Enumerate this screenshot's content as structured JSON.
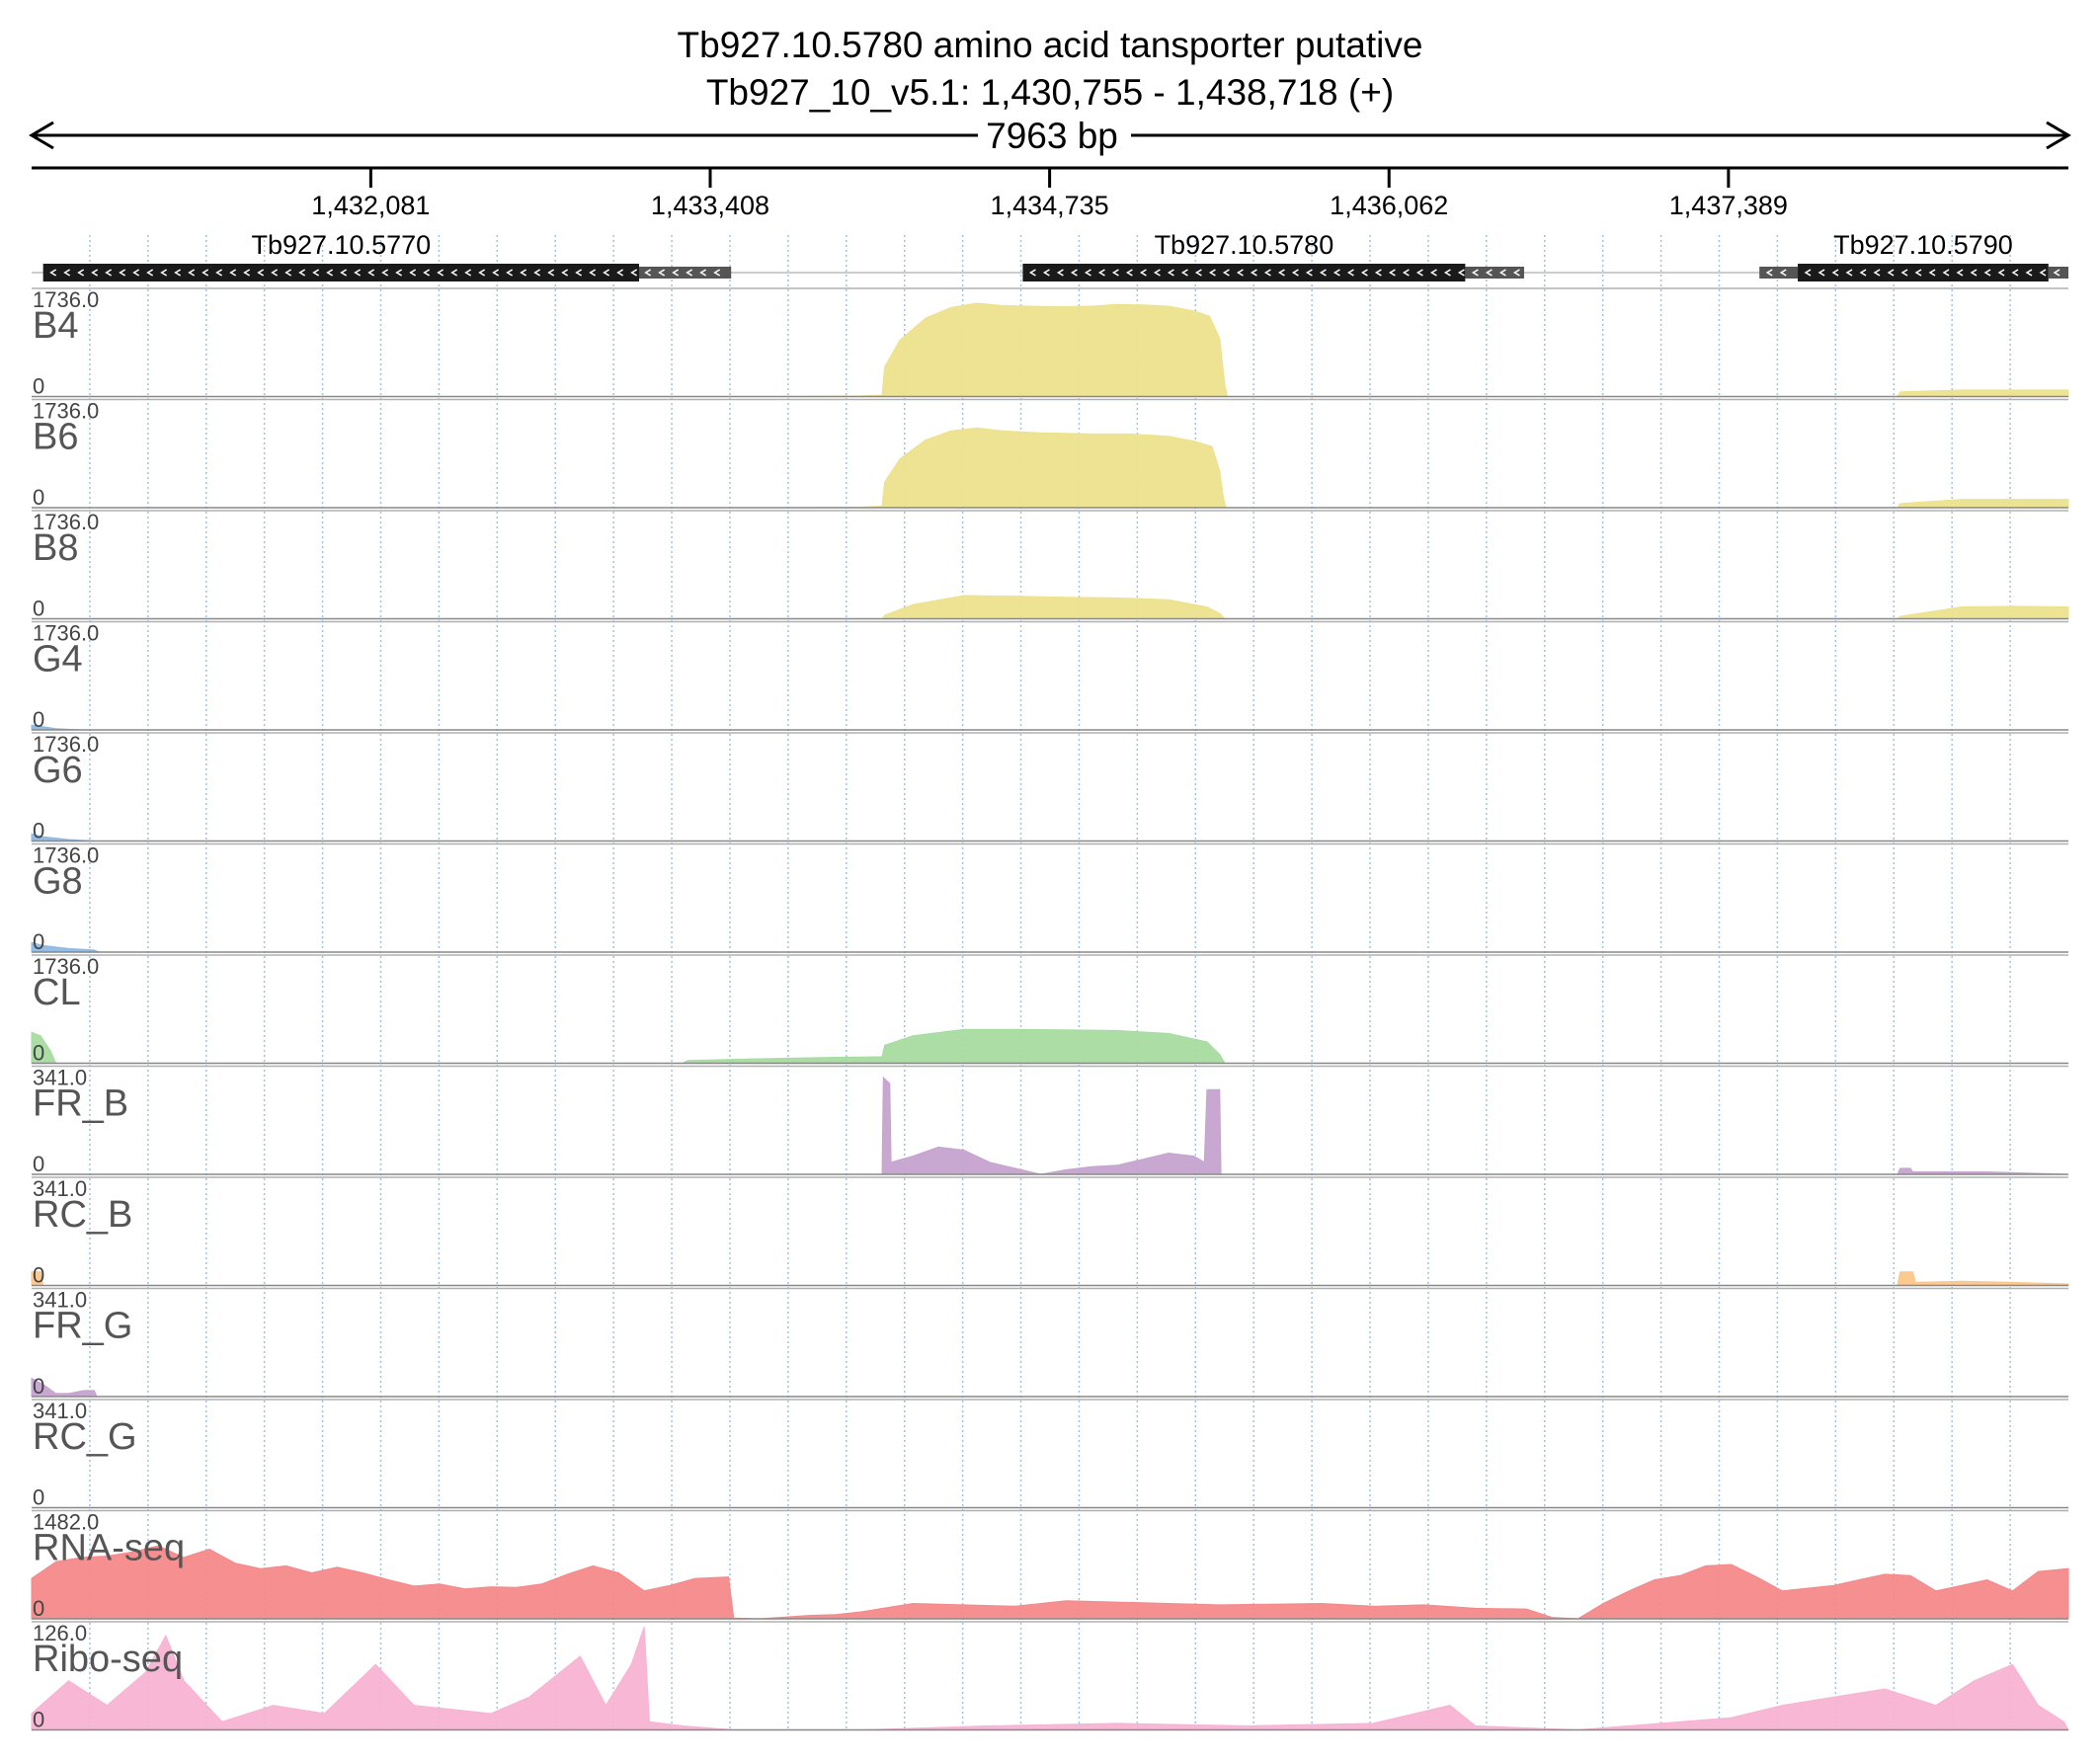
{
  "chart_data": {
    "type": "area",
    "title": "Tb927.10.5780  amino acid tansporter  putative",
    "subtitle": "Tb927_10_v5.1: 1,430,755 - 1,438,718 (+)",
    "span_label": "7963 bp",
    "xlim": [
      1430755,
      1438718
    ],
    "grid": true,
    "ticks": [
      {
        "pos": 1432081,
        "label": "1,432,081"
      },
      {
        "pos": 1433408,
        "label": "1,433,408"
      },
      {
        "pos": 1434735,
        "label": "1,434,735"
      },
      {
        "pos": 1436062,
        "label": "1,436,062"
      },
      {
        "pos": 1437389,
        "label": "1,437,389"
      }
    ],
    "genes": [
      {
        "name": "Tb927.10.5770",
        "strand": "-",
        "start": 1430800,
        "cds_end": 1433130,
        "end": 1433490
      },
      {
        "name": "Tb927.10.5780",
        "strand": "-",
        "start": 1434630,
        "cds_end": 1436360,
        "end": 1436590
      },
      {
        "name": "Tb927.10.5790",
        "strand": "-",
        "start": 1437660,
        "cds_end": 1438640,
        "end": 1438718,
        "utr_start": 1437510
      }
    ],
    "series": [
      {
        "name": "B4",
        "max_label": "1736.0",
        "zero_label": "0",
        "ymax": 1736,
        "color": "#ede28c",
        "points": [
          [
            1430755,
            0
          ],
          [
            1430850,
            0
          ],
          [
            1433700,
            0
          ],
          [
            1434000,
            10
          ],
          [
            1434080,
            25
          ],
          [
            1434090,
            500
          ],
          [
            1434150,
            950
          ],
          [
            1434250,
            1320
          ],
          [
            1434350,
            1500
          ],
          [
            1434450,
            1570
          ],
          [
            1434550,
            1530
          ],
          [
            1434650,
            1520
          ],
          [
            1434750,
            1510
          ],
          [
            1434900,
            1520
          ],
          [
            1435000,
            1550
          ],
          [
            1435100,
            1540
          ],
          [
            1435200,
            1520
          ],
          [
            1435300,
            1440
          ],
          [
            1435360,
            1350
          ],
          [
            1435400,
            980
          ],
          [
            1435420,
            200
          ],
          [
            1435430,
            0
          ],
          [
            1438050,
            0
          ],
          [
            1438060,
            80
          ],
          [
            1438300,
            110
          ],
          [
            1438718,
            110
          ]
        ]
      },
      {
        "name": "B6",
        "max_label": "1736.0",
        "zero_label": "0",
        "ymax": 1736,
        "color": "#ede28c",
        "points": [
          [
            1430755,
            0
          ],
          [
            1433700,
            0
          ],
          [
            1434000,
            10
          ],
          [
            1434080,
            25
          ],
          [
            1434090,
            430
          ],
          [
            1434150,
            820
          ],
          [
            1434250,
            1140
          ],
          [
            1434350,
            1290
          ],
          [
            1434450,
            1340
          ],
          [
            1434550,
            1290
          ],
          [
            1434700,
            1260
          ],
          [
            1434900,
            1240
          ],
          [
            1435050,
            1240
          ],
          [
            1435200,
            1200
          ],
          [
            1435300,
            1120
          ],
          [
            1435370,
            1030
          ],
          [
            1435400,
            620
          ],
          [
            1435415,
            150
          ],
          [
            1435425,
            0
          ],
          [
            1438050,
            0
          ],
          [
            1438060,
            70
          ],
          [
            1438300,
            140
          ],
          [
            1438718,
            140
          ]
        ]
      },
      {
        "name": "B8",
        "max_label": "1736.0",
        "zero_label": "0",
        "ymax": 1736,
        "color": "#ede28c",
        "points": [
          [
            1430755,
            0
          ],
          [
            1434080,
            0
          ],
          [
            1434090,
            60
          ],
          [
            1434200,
            240
          ],
          [
            1434400,
            390
          ],
          [
            1434600,
            380
          ],
          [
            1434800,
            360
          ],
          [
            1435000,
            350
          ],
          [
            1435200,
            320
          ],
          [
            1435350,
            200
          ],
          [
            1435400,
            90
          ],
          [
            1435420,
            0
          ],
          [
            1438050,
            0
          ],
          [
            1438060,
            40
          ],
          [
            1438300,
            200
          ],
          [
            1438500,
            210
          ],
          [
            1438718,
            200
          ]
        ]
      },
      {
        "name": "G4",
        "max_label": "1736.0",
        "zero_label": "0",
        "ymax": 1736,
        "color": "#8fb8e0",
        "points": [
          [
            1430755,
            80
          ],
          [
            1430790,
            60
          ],
          [
            1430850,
            20
          ],
          [
            1430950,
            0
          ],
          [
            1438718,
            0
          ]
        ]
      },
      {
        "name": "G6",
        "max_label": "1736.0",
        "zero_label": "0",
        "ymax": 1736,
        "color": "#8fb8e0",
        "points": [
          [
            1430755,
            120
          ],
          [
            1430800,
            70
          ],
          [
            1430900,
            25
          ],
          [
            1431000,
            0
          ],
          [
            1438718,
            0
          ]
        ]
      },
      {
        "name": "G8",
        "max_label": "1736.0",
        "zero_label": "0",
        "ymax": 1736,
        "color": "#8fb8e0",
        "points": [
          [
            1430755,
            160
          ],
          [
            1430800,
            110
          ],
          [
            1430900,
            60
          ],
          [
            1431000,
            35
          ],
          [
            1431020,
            0
          ],
          [
            1438718,
            0
          ]
        ]
      },
      {
        "name": "CL",
        "max_label": "1736.0",
        "zero_label": "0",
        "ymax": 1736,
        "color": "#a6dba0",
        "points": [
          [
            1430755,
            520
          ],
          [
            1430790,
            460
          ],
          [
            1430830,
            200
          ],
          [
            1430850,
            0
          ],
          [
            1433300,
            0
          ],
          [
            1433320,
            45
          ],
          [
            1433600,
            75
          ],
          [
            1433900,
            100
          ],
          [
            1434080,
            110
          ],
          [
            1434090,
            300
          ],
          [
            1434200,
            460
          ],
          [
            1434400,
            570
          ],
          [
            1434600,
            570
          ],
          [
            1434800,
            560
          ],
          [
            1435000,
            550
          ],
          [
            1435200,
            500
          ],
          [
            1435350,
            360
          ],
          [
            1435400,
            150
          ],
          [
            1435420,
            0
          ],
          [
            1438718,
            0
          ]
        ]
      },
      {
        "name": "FR_B",
        "max_label": "341.0",
        "zero_label": "0",
        "ymax": 341,
        "color": "#c5a3cf",
        "points": [
          [
            1430755,
            0
          ],
          [
            1434080,
            0
          ],
          [
            1434085,
            320
          ],
          [
            1434110,
            300
          ],
          [
            1434115,
            40
          ],
          [
            1434200,
            60
          ],
          [
            1434300,
            90
          ],
          [
            1434400,
            80
          ],
          [
            1434500,
            40
          ],
          [
            1434600,
            20
          ],
          [
            1434700,
            0
          ],
          [
            1434800,
            15
          ],
          [
            1434900,
            25
          ],
          [
            1435000,
            30
          ],
          [
            1435100,
            50
          ],
          [
            1435200,
            70
          ],
          [
            1435300,
            60
          ],
          [
            1435340,
            40
          ],
          [
            1435350,
            280
          ],
          [
            1435400,
            280
          ],
          [
            1435405,
            0
          ],
          [
            1438050,
            0
          ],
          [
            1438060,
            20
          ],
          [
            1438100,
            20
          ],
          [
            1438110,
            8
          ],
          [
            1438400,
            8
          ],
          [
            1438718,
            0
          ]
        ]
      },
      {
        "name": "RC_B",
        "max_label": "341.0",
        "zero_label": "0",
        "ymax": 341,
        "color": "#fcc68a",
        "points": [
          [
            1430755,
            45
          ],
          [
            1430790,
            45
          ],
          [
            1430800,
            0
          ],
          [
            1438050,
            0
          ],
          [
            1438060,
            45
          ],
          [
            1438110,
            45
          ],
          [
            1438120,
            10
          ],
          [
            1438300,
            14
          ],
          [
            1438500,
            10
          ],
          [
            1438718,
            5
          ]
        ]
      },
      {
        "name": "FR_G",
        "max_label": "341.0",
        "zero_label": "0",
        "ymax": 341,
        "color": "#c5a3cf",
        "points": [
          [
            1430755,
            60
          ],
          [
            1430800,
            40
          ],
          [
            1430850,
            10
          ],
          [
            1430900,
            10
          ],
          [
            1430960,
            20
          ],
          [
            1431000,
            20
          ],
          [
            1431010,
            0
          ],
          [
            1438718,
            0
          ]
        ]
      },
      {
        "name": "RC_G",
        "max_label": "341.0",
        "zero_label": "0",
        "ymax": 341,
        "color": "#fcc68a",
        "points": [
          [
            1430755,
            0
          ],
          [
            1438718,
            0
          ]
        ]
      },
      {
        "name": "RNA-seq",
        "max_label": "1482.0",
        "zero_label": "0",
        "ymax": 1482,
        "color": "#f4898a",
        "points": [
          [
            1430755,
            580
          ],
          [
            1430850,
            820
          ],
          [
            1430950,
            880
          ],
          [
            1431050,
            900
          ],
          [
            1431150,
            960
          ],
          [
            1431250,
            1050
          ],
          [
            1431350,
            880
          ],
          [
            1431450,
            1000
          ],
          [
            1431550,
            800
          ],
          [
            1431650,
            720
          ],
          [
            1431750,
            760
          ],
          [
            1431850,
            660
          ],
          [
            1431950,
            740
          ],
          [
            1432050,
            660
          ],
          [
            1432150,
            560
          ],
          [
            1432250,
            470
          ],
          [
            1432350,
            500
          ],
          [
            1432450,
            430
          ],
          [
            1432550,
            460
          ],
          [
            1432650,
            450
          ],
          [
            1432750,
            500
          ],
          [
            1432850,
            640
          ],
          [
            1432950,
            760
          ],
          [
            1433050,
            660
          ],
          [
            1433150,
            400
          ],
          [
            1433250,
            480
          ],
          [
            1433350,
            580
          ],
          [
            1433480,
            600
          ],
          [
            1433500,
            10
          ],
          [
            1433600,
            0
          ],
          [
            1433700,
            25
          ],
          [
            1433800,
            50
          ],
          [
            1433900,
            60
          ],
          [
            1434000,
            100
          ],
          [
            1434200,
            220
          ],
          [
            1434400,
            200
          ],
          [
            1434600,
            180
          ],
          [
            1434800,
            260
          ],
          [
            1435000,
            240
          ],
          [
            1435200,
            220
          ],
          [
            1435400,
            200
          ],
          [
            1435600,
            210
          ],
          [
            1435800,
            220
          ],
          [
            1436000,
            180
          ],
          [
            1436200,
            200
          ],
          [
            1436400,
            150
          ],
          [
            1436600,
            140
          ],
          [
            1436700,
            20
          ],
          [
            1436800,
            0
          ],
          [
            1436900,
            220
          ],
          [
            1437000,
            400
          ],
          [
            1437100,
            560
          ],
          [
            1437200,
            620
          ],
          [
            1437300,
            760
          ],
          [
            1437400,
            780
          ],
          [
            1437500,
            600
          ],
          [
            1437600,
            400
          ],
          [
            1437700,
            440
          ],
          [
            1437800,
            480
          ],
          [
            1437900,
            560
          ],
          [
            1438000,
            640
          ],
          [
            1438100,
            620
          ],
          [
            1438200,
            400
          ],
          [
            1438300,
            480
          ],
          [
            1438400,
            560
          ],
          [
            1438500,
            400
          ],
          [
            1438600,
            680
          ],
          [
            1438718,
            720
          ]
        ]
      },
      {
        "name": "Ribo-seq",
        "max_label": "126.0",
        "zero_label": "0",
        "ymax": 126,
        "color": "#f7b3d3",
        "points": [
          [
            1430755,
            20
          ],
          [
            1430900,
            60
          ],
          [
            1431050,
            30
          ],
          [
            1431200,
            70
          ],
          [
            1431280,
            115
          ],
          [
            1431350,
            60
          ],
          [
            1431500,
            10
          ],
          [
            1431700,
            30
          ],
          [
            1431900,
            20
          ],
          [
            1432100,
            80
          ],
          [
            1432250,
            30
          ],
          [
            1432400,
            25
          ],
          [
            1432550,
            20
          ],
          [
            1432700,
            40
          ],
          [
            1432900,
            90
          ],
          [
            1433000,
            30
          ],
          [
            1433100,
            80
          ],
          [
            1433150,
            126
          ],
          [
            1433170,
            10
          ],
          [
            1433300,
            5
          ],
          [
            1433500,
            0
          ],
          [
            1434000,
            0
          ],
          [
            1434500,
            5
          ],
          [
            1435000,
            8
          ],
          [
            1435500,
            5
          ],
          [
            1436000,
            8
          ],
          [
            1436300,
            30
          ],
          [
            1436400,
            5
          ],
          [
            1436800,
            0
          ],
          [
            1437400,
            15
          ],
          [
            1437600,
            30
          ],
          [
            1437800,
            40
          ],
          [
            1438000,
            50
          ],
          [
            1438100,
            40
          ],
          [
            1438200,
            30
          ],
          [
            1438350,
            60
          ],
          [
            1438500,
            80
          ],
          [
            1438600,
            30
          ],
          [
            1438700,
            10
          ],
          [
            1438718,
            0
          ]
        ]
      }
    ]
  }
}
